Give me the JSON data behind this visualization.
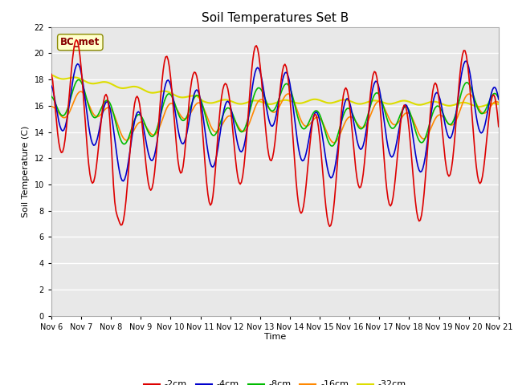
{
  "title": "Soil Temperatures Set B",
  "xlabel": "Time",
  "ylabel": "Soil Temperature (C)",
  "ylim": [
    0,
    22
  ],
  "yticks": [
    0,
    2,
    4,
    6,
    8,
    10,
    12,
    14,
    16,
    18,
    20,
    22
  ],
  "xlim": [
    0,
    360
  ],
  "xtick_labels": [
    "Nov 6",
    "Nov 7",
    "Nov 8",
    "Nov 9",
    "Nov 10",
    "Nov 11",
    "Nov 12",
    "Nov 13",
    "Nov 14",
    "Nov 15",
    "Nov 16",
    "Nov 17",
    "Nov 18",
    "Nov 19",
    "Nov 20",
    "Nov 21"
  ],
  "xtick_positions": [
    0,
    24,
    48,
    72,
    96,
    120,
    144,
    168,
    192,
    216,
    240,
    264,
    288,
    312,
    336,
    360
  ],
  "fig_bg": "#ffffff",
  "plot_bg": "#e8e8e8",
  "grid_color": "#ffffff",
  "line_colors": {
    "-2cm": "#dd0000",
    "-4cm": "#0000cc",
    "-8cm": "#00bb00",
    "-16cm": "#ff8800",
    "-32cm": "#dddd00"
  },
  "legend_label": "BC_met",
  "legend_box_facecolor": "#ffffcc",
  "legend_box_edgecolor": "#888800",
  "legend_text_color": "#880000",
  "title_fontsize": 11,
  "axis_fontsize": 8,
  "tick_fontsize": 7
}
